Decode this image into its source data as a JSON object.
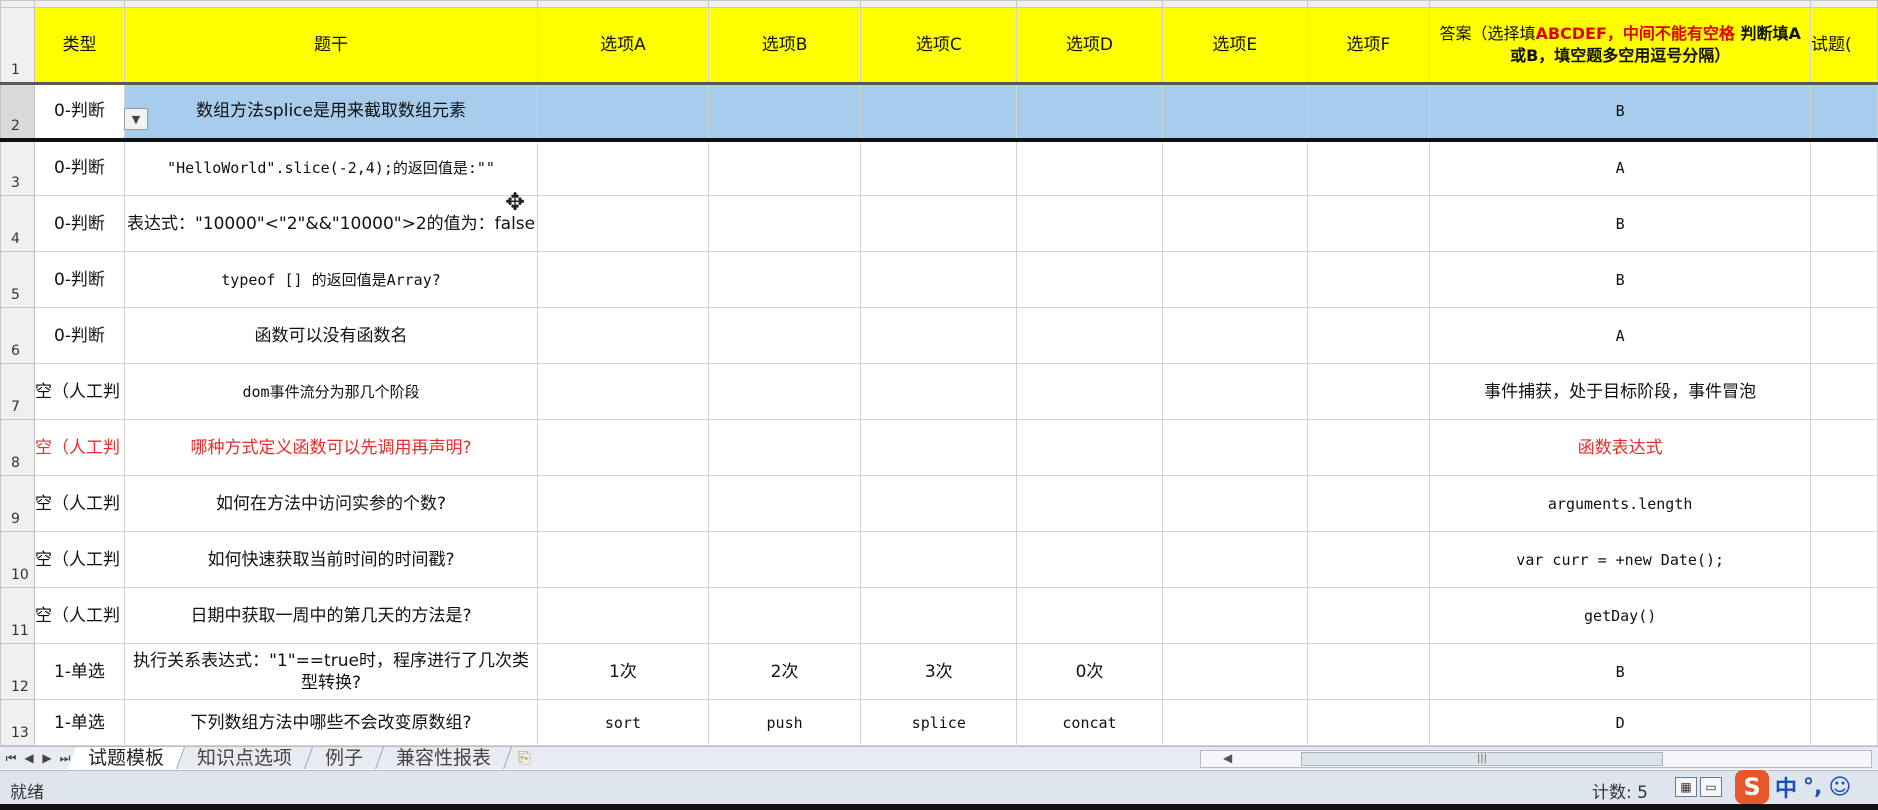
{
  "columns": {
    "type": "类型",
    "stem": "题干",
    "optA": "选项A",
    "optB": "选项B",
    "optC": "选项C",
    "optD": "选项D",
    "optE": "选项E",
    "optF": "选项F",
    "answer_part1": "答案（选择填",
    "answer_red1": "ABCDEF，中间不能有空格",
    "answer_bold": " 判断填A或B，填空题多空用逗号分隔）",
    "score": "试题(",
    "header_row_no": "1"
  },
  "rows": [
    {
      "no": "2",
      "type": "0-判断",
      "stem": "数组方法splice是用来截取数组元素",
      "a": "",
      "b": "",
      "c": "",
      "d": "",
      "e": "",
      "f": "",
      "answer": "B"
    },
    {
      "no": "3",
      "type": "0-判断",
      "stem": "\"HelloWorld\".slice(-2,4);的返回值是:\"\"",
      "a": "",
      "b": "",
      "c": "",
      "d": "",
      "e": "",
      "f": "",
      "answer": "A"
    },
    {
      "no": "4",
      "type": "0-判断",
      "stem": "表达式：\"10000\"<\"2\"&&\"10000\">2的值为：false",
      "a": "",
      "b": "",
      "c": "",
      "d": "",
      "e": "",
      "f": "",
      "answer": "B"
    },
    {
      "no": "5",
      "type": "0-判断",
      "stem": "typeof [] 的返回值是Array?",
      "a": "",
      "b": "",
      "c": "",
      "d": "",
      "e": "",
      "f": "",
      "answer": "B"
    },
    {
      "no": "6",
      "type": "0-判断",
      "stem": "函数可以没有函数名",
      "a": "",
      "b": "",
      "c": "",
      "d": "",
      "e": "",
      "f": "",
      "answer": "A"
    },
    {
      "no": "7",
      "type": "空（人工判",
      "stem": "dom事件流分为那几个阶段",
      "a": "",
      "b": "",
      "c": "",
      "d": "",
      "e": "",
      "f": "",
      "answer": "事件捕获，处于目标阶段，事件冒泡"
    },
    {
      "no": "8",
      "type": "空（人工判",
      "stem": "哪种方式定义函数可以先调用再声明?",
      "a": "",
      "b": "",
      "c": "",
      "d": "",
      "e": "",
      "f": "",
      "answer": "函数表达式"
    },
    {
      "no": "9",
      "type": "空（人工判",
      "stem": "如何在方法中访问实参的个数?",
      "a": "",
      "b": "",
      "c": "",
      "d": "",
      "e": "",
      "f": "",
      "answer": "arguments.length"
    },
    {
      "no": "10",
      "type": "空（人工判",
      "stem": "如何快速获取当前时间的时间戳?",
      "a": "",
      "b": "",
      "c": "",
      "d": "",
      "e": "",
      "f": "",
      "answer": "var curr = +new Date();"
    },
    {
      "no": "11",
      "type": "空（人工判",
      "stem": "日期中获取一周中的第几天的方法是?",
      "a": "",
      "b": "",
      "c": "",
      "d": "",
      "e": "",
      "f": "",
      "answer": "getDay()"
    },
    {
      "no": "12",
      "type": "1-单选",
      "stem": "执行关系表达式：\"1\"==true时，程序进行了几次类型转换?",
      "a": "1次",
      "b": "2次",
      "c": "3次",
      "d": "0次",
      "e": "",
      "f": "",
      "answer": "B"
    },
    {
      "no": "13",
      "type": "1-单选",
      "stem": "下列数组方法中哪些不会改变原数组?",
      "a": "sort",
      "b": "push",
      "c": "splice",
      "d": "concat",
      "e": "",
      "f": "",
      "answer": "D"
    }
  ],
  "sheet_tabs": [
    "试题模板",
    "知识点选项",
    "例子",
    "兼容性报表"
  ],
  "active_tab": "试题模板",
  "status": {
    "ready": "就绪",
    "count": "计数: 5"
  },
  "ime": {
    "lang": "中",
    "punct": "°,",
    "emoji": "☺"
  },
  "icons": {
    "dropdown": "▼",
    "cursor": "✥",
    "new_sheet": "⎘"
  }
}
